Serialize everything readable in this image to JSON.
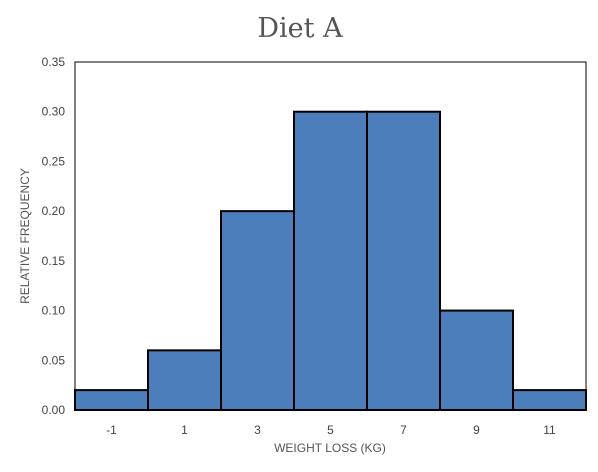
{
  "chart_data": {
    "type": "bar",
    "title": "Diet A",
    "xlabel": "WEIGHT LOSS (KG)",
    "ylabel": "RELATIVE FREQUENCY",
    "categories": [
      "-1",
      "1",
      "3",
      "5",
      "7",
      "9",
      "11"
    ],
    "values": [
      0.02,
      0.06,
      0.2,
      0.3,
      0.3,
      0.1,
      0.02
    ],
    "ylim": [
      0,
      0.35
    ],
    "yticks": [
      "0.00",
      "0.05",
      "0.10",
      "0.15",
      "0.20",
      "0.25",
      "0.30",
      "0.35"
    ],
    "grid": false,
    "legend": "none",
    "bar_color": "#4d7ebc"
  }
}
